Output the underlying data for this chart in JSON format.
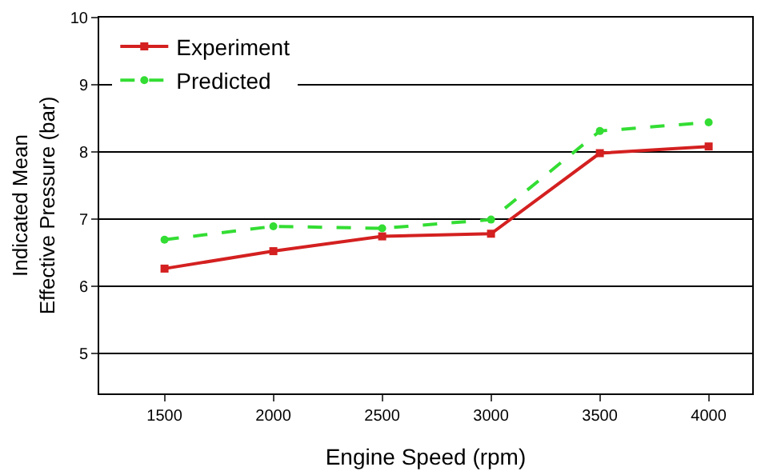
{
  "chart_data": {
    "type": "line",
    "xlabel": "Engine Speed (rpm)",
    "ylabel": "Indicated Mean\nEffective Pressure (bar)",
    "x": [
      1500,
      2000,
      2500,
      3000,
      3500,
      4000
    ],
    "series": [
      {
        "name": "Experiment",
        "color": "#d42020",
        "values": [
          6.26,
          6.52,
          6.74,
          6.78,
          7.98,
          8.08
        ],
        "marker": "square",
        "line_style": "solid"
      },
      {
        "name": "Predicted",
        "color": "#33dd33",
        "values": [
          6.69,
          6.89,
          6.86,
          6.99,
          8.31,
          8.44
        ],
        "marker": "circle",
        "line_style": "dashed"
      }
    ],
    "xlim": [
      1200,
      4200
    ],
    "xticks": [
      1500,
      2000,
      2500,
      3000,
      3500,
      4000
    ],
    "ylim": [
      4.4,
      10
    ],
    "yticks": [
      5,
      6,
      7,
      8,
      9,
      10
    ],
    "grid": "y",
    "legend": "top left"
  }
}
